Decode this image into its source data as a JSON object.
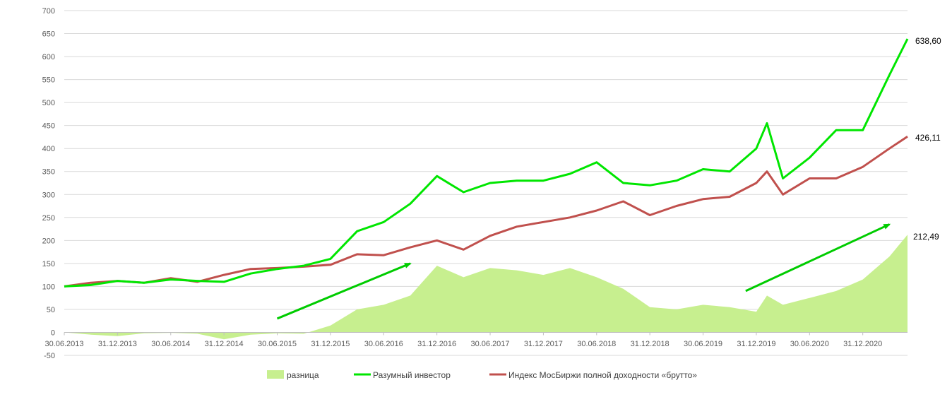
{
  "chart_data": {
    "type": "line",
    "title": "",
    "xlabel": "",
    "ylabel": "",
    "ylim": [
      -50,
      700
    ],
    "y_ticks": [
      "700",
      "650",
      "600",
      "550",
      "500",
      "450",
      "400",
      "350",
      "300",
      "250",
      "200",
      "150",
      "100",
      "50",
      "0",
      "-50"
    ],
    "x_tick_labels": [
      "30.06.2013",
      "31.12.2013",
      "30.06.2014",
      "31.12.2014",
      "30.06.2015",
      "31.12.2015",
      "30.06.2016",
      "31.12.2016",
      "30.06.2017",
      "31.12.2017",
      "30.06.2018",
      "31.12.2018",
      "30.06.2019",
      "31.12.2019",
      "30.06.2020",
      "31.12.2020"
    ],
    "grid": true,
    "legend_position": "bottom",
    "x": [
      2013.5,
      2013.75,
      2014.0,
      2014.25,
      2014.5,
      2014.75,
      2015.0,
      2015.25,
      2015.5,
      2015.75,
      2016.0,
      2016.25,
      2016.5,
      2016.75,
      2017.0,
      2017.25,
      2017.5,
      2017.75,
      2018.0,
      2018.25,
      2018.5,
      2018.75,
      2019.0,
      2019.25,
      2019.5,
      2019.75,
      2020.0,
      2020.1,
      2020.25,
      2020.5,
      2020.75,
      2021.0,
      2021.25,
      2021.42
    ],
    "series": [
      {
        "name": "разница",
        "kind": "area",
        "color": "#c7ef8f",
        "values": [
          0,
          -5,
          -8,
          -2,
          -1,
          -3,
          -15,
          -5,
          -2,
          -3,
          15,
          50,
          60,
          80,
          145,
          120,
          140,
          135,
          125,
          140,
          120,
          95,
          55,
          50,
          60,
          55,
          45,
          80,
          60,
          75,
          90,
          115,
          165,
          212.49
        ]
      },
      {
        "name": "Разумный инвестор",
        "kind": "line",
        "color": "#00e600",
        "values": [
          100,
          103,
          112,
          108,
          115,
          112,
          110,
          128,
          138,
          145,
          160,
          220,
          240,
          280,
          340,
          305,
          325,
          330,
          330,
          345,
          370,
          325,
          320,
          330,
          355,
          350,
          400,
          455,
          335,
          380,
          440,
          440,
          560,
          638.6
        ]
      },
      {
        "name": "Индекс МосБиржи полной доходности «брутто»",
        "kind": "line",
        "color": "#c0504d",
        "values": [
          100,
          108,
          112,
          108,
          118,
          110,
          125,
          138,
          140,
          143,
          147,
          170,
          168,
          185,
          200,
          180,
          210,
          230,
          240,
          250,
          265,
          285,
          255,
          275,
          290,
          295,
          325,
          350,
          300,
          335,
          335,
          360,
          400,
          426.11
        ]
      }
    ],
    "end_labels": {
      "green": "638,60",
      "red": "426,11",
      "area": "212,49"
    },
    "annotations": [
      {
        "type": "arrow",
        "color": "#00cc00",
        "from": [
          2015.5,
          30
        ],
        "to": [
          2016.75,
          150
        ]
      },
      {
        "type": "arrow",
        "color": "#00cc00",
        "from": [
          2019.9,
          90
        ],
        "to": [
          2021.25,
          235
        ]
      }
    ]
  }
}
